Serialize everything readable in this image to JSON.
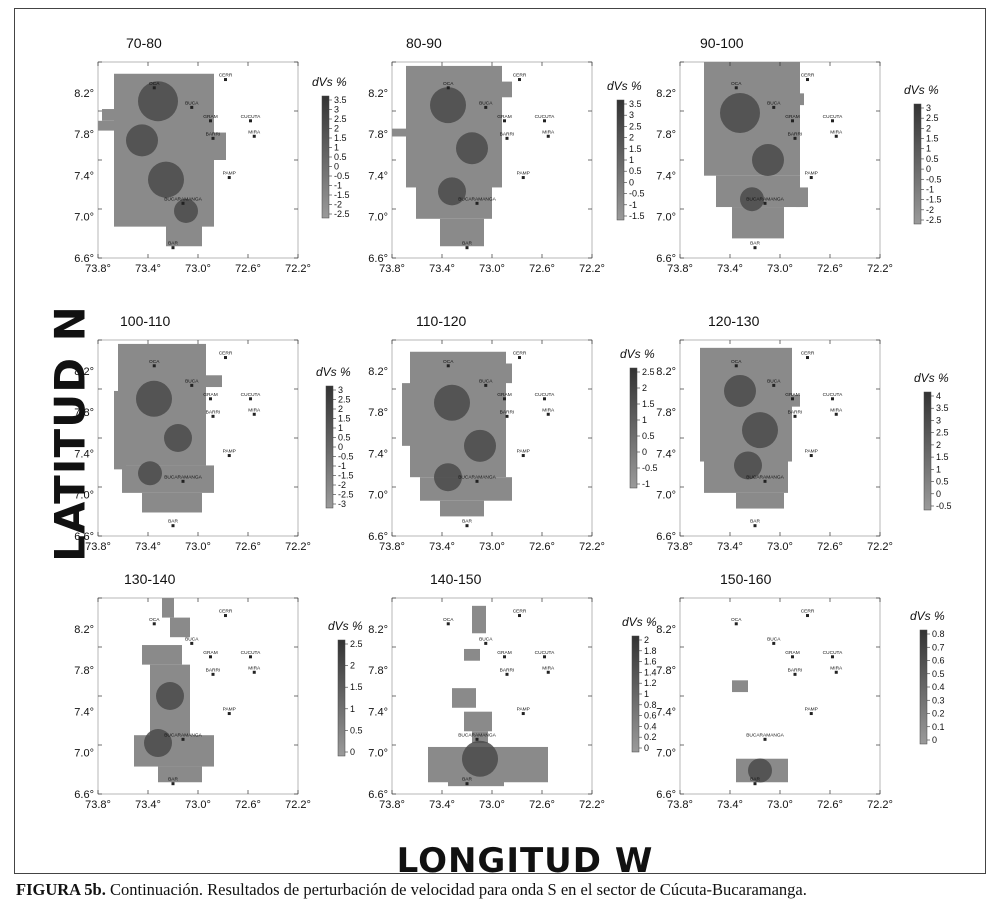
{
  "figure": {
    "y_axis_label": "LATITUD N",
    "x_axis_label": "LONGITUD W",
    "caption_label": "FIGURA 5b.",
    "caption_text": "Continuación. Resultados de perturbación de velocidad para onda S en el sector de Cúcuta-Bucaramanga."
  },
  "chart_data": {
    "type": "heatmap",
    "xlim": [
      73.8,
      72.2
    ],
    "ylim": [
      6.6,
      8.5
    ],
    "x_tick_labels": [
      "73.8°",
      "73.4°",
      "73.0°",
      "72.6°",
      "72.2°"
    ],
    "y_tick_labels": [
      "6.6°",
      "7.0°",
      "7.4°",
      "7.8°",
      "8.2°"
    ],
    "colorbar_title": "dVs %",
    "stations": [
      {
        "name": "OCA",
        "lon": 73.35,
        "lat": 8.25
      },
      {
        "name": "CERR",
        "lon": 72.78,
        "lat": 8.33
      },
      {
        "name": "BUCA",
        "lon": 73.05,
        "lat": 8.06
      },
      {
        "name": "GRAM",
        "lon": 72.9,
        "lat": 7.93
      },
      {
        "name": "CUCUTA",
        "lon": 72.58,
        "lat": 7.93
      },
      {
        "name": "BARRI",
        "lon": 72.88,
        "lat": 7.76
      },
      {
        "name": "MIRA",
        "lon": 72.55,
        "lat": 7.78
      },
      {
        "name": "PAMP",
        "lon": 72.75,
        "lat": 7.38
      },
      {
        "name": "BUCARAMANGA",
        "lon": 73.12,
        "lat": 7.13
      },
      {
        "name": "BAR",
        "lon": 73.2,
        "lat": 6.7
      }
    ],
    "panels": [
      {
        "title": "70-80",
        "colorbar_ticks": [
          "3.5",
          "3",
          "2.5",
          "2",
          "1.5",
          "1",
          "0.5",
          "0",
          "-0.5",
          "-1",
          "-1.5",
          "-2",
          "-2.5"
        ]
      },
      {
        "title": "80-90",
        "colorbar_ticks": [
          "3.5",
          "3",
          "2.5",
          "2",
          "1.5",
          "1",
          "0.5",
          "0",
          "-0.5",
          "-1",
          "-1.5"
        ]
      },
      {
        "title": "90-100",
        "colorbar_ticks": [
          "3",
          "2.5",
          "2",
          "1.5",
          "1",
          "0.5",
          "0",
          "-0.5",
          "-1",
          "-1.5",
          "-2",
          "-2.5"
        ]
      },
      {
        "title": "100-110",
        "colorbar_ticks": [
          "3",
          "2.5",
          "2",
          "1.5",
          "1",
          "0.5",
          "0",
          "-0.5",
          "-1",
          "-1.5",
          "-2",
          "-2.5",
          "-3"
        ]
      },
      {
        "title": "110-120",
        "colorbar_ticks": [
          "2.5",
          "2",
          "1.5",
          "1",
          "0.5",
          "0",
          "-0.5",
          "-1"
        ]
      },
      {
        "title": "120-130",
        "colorbar_ticks": [
          "4",
          "3.5",
          "3",
          "2.5",
          "2",
          "1.5",
          "1",
          "0.5",
          "0",
          "-0.5"
        ]
      },
      {
        "title": "130-140",
        "colorbar_ticks": [
          "2.5",
          "2",
          "1.5",
          "1",
          "0.5",
          "0"
        ]
      },
      {
        "title": "140-150",
        "colorbar_ticks": [
          "2",
          "1.8",
          "1.6",
          "1.4",
          "1.2",
          "1",
          "0.8",
          "0.6",
          "0.4",
          "0.2",
          "0"
        ]
      },
      {
        "title": "150-160",
        "colorbar_ticks": [
          "0.8",
          "0.7",
          "0.6",
          "0.5",
          "0.4",
          "0.3",
          "0.2",
          "0.1",
          "0"
        ]
      }
    ]
  }
}
